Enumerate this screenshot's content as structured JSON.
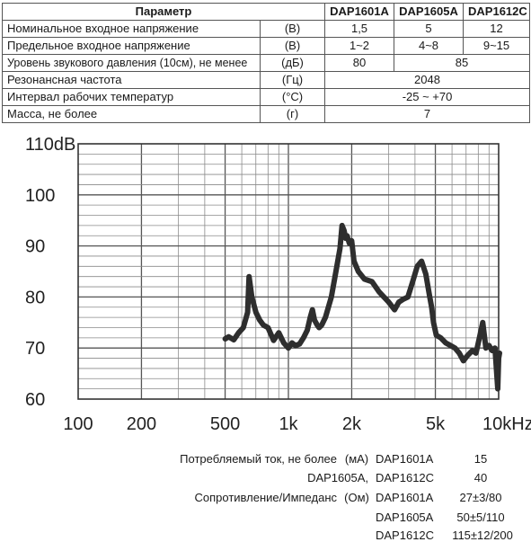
{
  "table": {
    "header": {
      "param": "Параметр",
      "models": [
        "DAP1601A",
        "DAP1605A",
        "DAP1612C"
      ]
    },
    "rows": [
      {
        "param": "Номинальное входное напряжение",
        "unit": "(В)",
        "values": [
          "1,5",
          "5",
          "12"
        ]
      },
      {
        "param": "Предельное входное напряжение",
        "unit": "(В)",
        "values": [
          "1~2",
          "4~8",
          "9~15"
        ]
      },
      {
        "param": "Уровень звукового давления (10см), не менее",
        "unit": "(дБ)",
        "values": [
          "80",
          "85"
        ]
      },
      {
        "param": "Резонансная частота",
        "unit": "(Гц)",
        "values": [
          "2048"
        ]
      },
      {
        "param": "Интервал рабочих температур",
        "unit": "(°С)",
        "values": [
          "-25 ~ +70"
        ]
      },
      {
        "param": "Масса, не более",
        "unit": "(г)",
        "values": [
          "7"
        ]
      }
    ]
  },
  "chart_data": {
    "type": "line",
    "x_scale": "log",
    "xlim": [
      100,
      10000
    ],
    "ylim": [
      60,
      110
    ],
    "grid": true,
    "x_tick_labels": [
      {
        "x": 100,
        "label": "100"
      },
      {
        "x": 200,
        "label": "200"
      },
      {
        "x": 500,
        "label": "500"
      },
      {
        "x": 1000,
        "label": "1k"
      },
      {
        "x": 2000,
        "label": "2k"
      },
      {
        "x": 5000,
        "label": "5k"
      },
      {
        "x": 10000,
        "label": "10kHz"
      }
    ],
    "y_tick_labels": [
      {
        "y": 110,
        "label": "110dB"
      },
      {
        "y": 100,
        "label": "100"
      },
      {
        "y": 90,
        "label": "90"
      },
      {
        "y": 80,
        "label": "80"
      },
      {
        "y": 70,
        "label": "70"
      },
      {
        "y": 60,
        "label": "60"
      }
    ],
    "series": [
      {
        "x": [
          500,
          520,
          550,
          580,
          610,
          640,
          650,
          670,
          700,
          730,
          760,
          800,
          850,
          900,
          950,
          1000,
          1040,
          1080,
          1130,
          1180,
          1230,
          1270,
          1300,
          1330,
          1370,
          1400,
          1440,
          1500,
          1600,
          1700,
          1760,
          1800,
          1840,
          1870,
          1900,
          1950,
          2000,
          2050,
          2150,
          2300,
          2500,
          2700,
          3000,
          3200,
          3350,
          3500,
          3700,
          3900,
          4100,
          4300,
          4500,
          4700,
          4800,
          4900,
          5050,
          5300,
          5600,
          5900,
          6200,
          6500,
          6800,
          7100,
          7500,
          7800,
          8100,
          8400,
          8700,
          9000,
          9300,
          9600,
          9900,
          10000,
          10100
        ],
        "y": [
          71.8,
          72.2,
          71.6,
          73.0,
          74.0,
          77.0,
          84.0,
          80.0,
          77.0,
          75.5,
          74.5,
          74.0,
          71.5,
          73.0,
          71.0,
          70.0,
          71.0,
          70.5,
          70.8,
          72.0,
          73.5,
          76.0,
          77.5,
          75.5,
          74.5,
          74.0,
          74.5,
          76.0,
          80.0,
          86.0,
          89.5,
          94.0,
          93.0,
          91.5,
          92.0,
          90.5,
          91.0,
          87.0,
          85.0,
          83.5,
          83.0,
          81.0,
          79.0,
          77.5,
          79.0,
          79.5,
          80.0,
          83.0,
          86.0,
          87.0,
          84.5,
          80.0,
          78.0,
          75.0,
          72.5,
          72.0,
          71.0,
          70.5,
          70.0,
          69.0,
          67.5,
          68.5,
          69.5,
          69.0,
          72.0,
          75.0,
          70.0,
          70.5,
          69.5,
          70.0,
          62.0,
          68.0,
          69.0
        ]
      }
    ]
  },
  "info": {
    "current_label": "Потребляемый ток, не более",
    "current_unit": "(мА)",
    "current_rows": [
      {
        "prefix": "",
        "model": "DAP1601A",
        "value": "15"
      },
      {
        "prefix": "DAP1605A,",
        "model": "DAP1612C",
        "value": "40"
      }
    ],
    "impedance_label": "Сопротивление/Импеданс",
    "impedance_unit": "(Ом)",
    "impedance_rows": [
      {
        "model": "DAP1601A",
        "value": "27±3/80"
      },
      {
        "model": "DAP1605A",
        "value": "50±5/110"
      },
      {
        "model": "DAP1612C",
        "value": "115±12/200"
      }
    ]
  }
}
